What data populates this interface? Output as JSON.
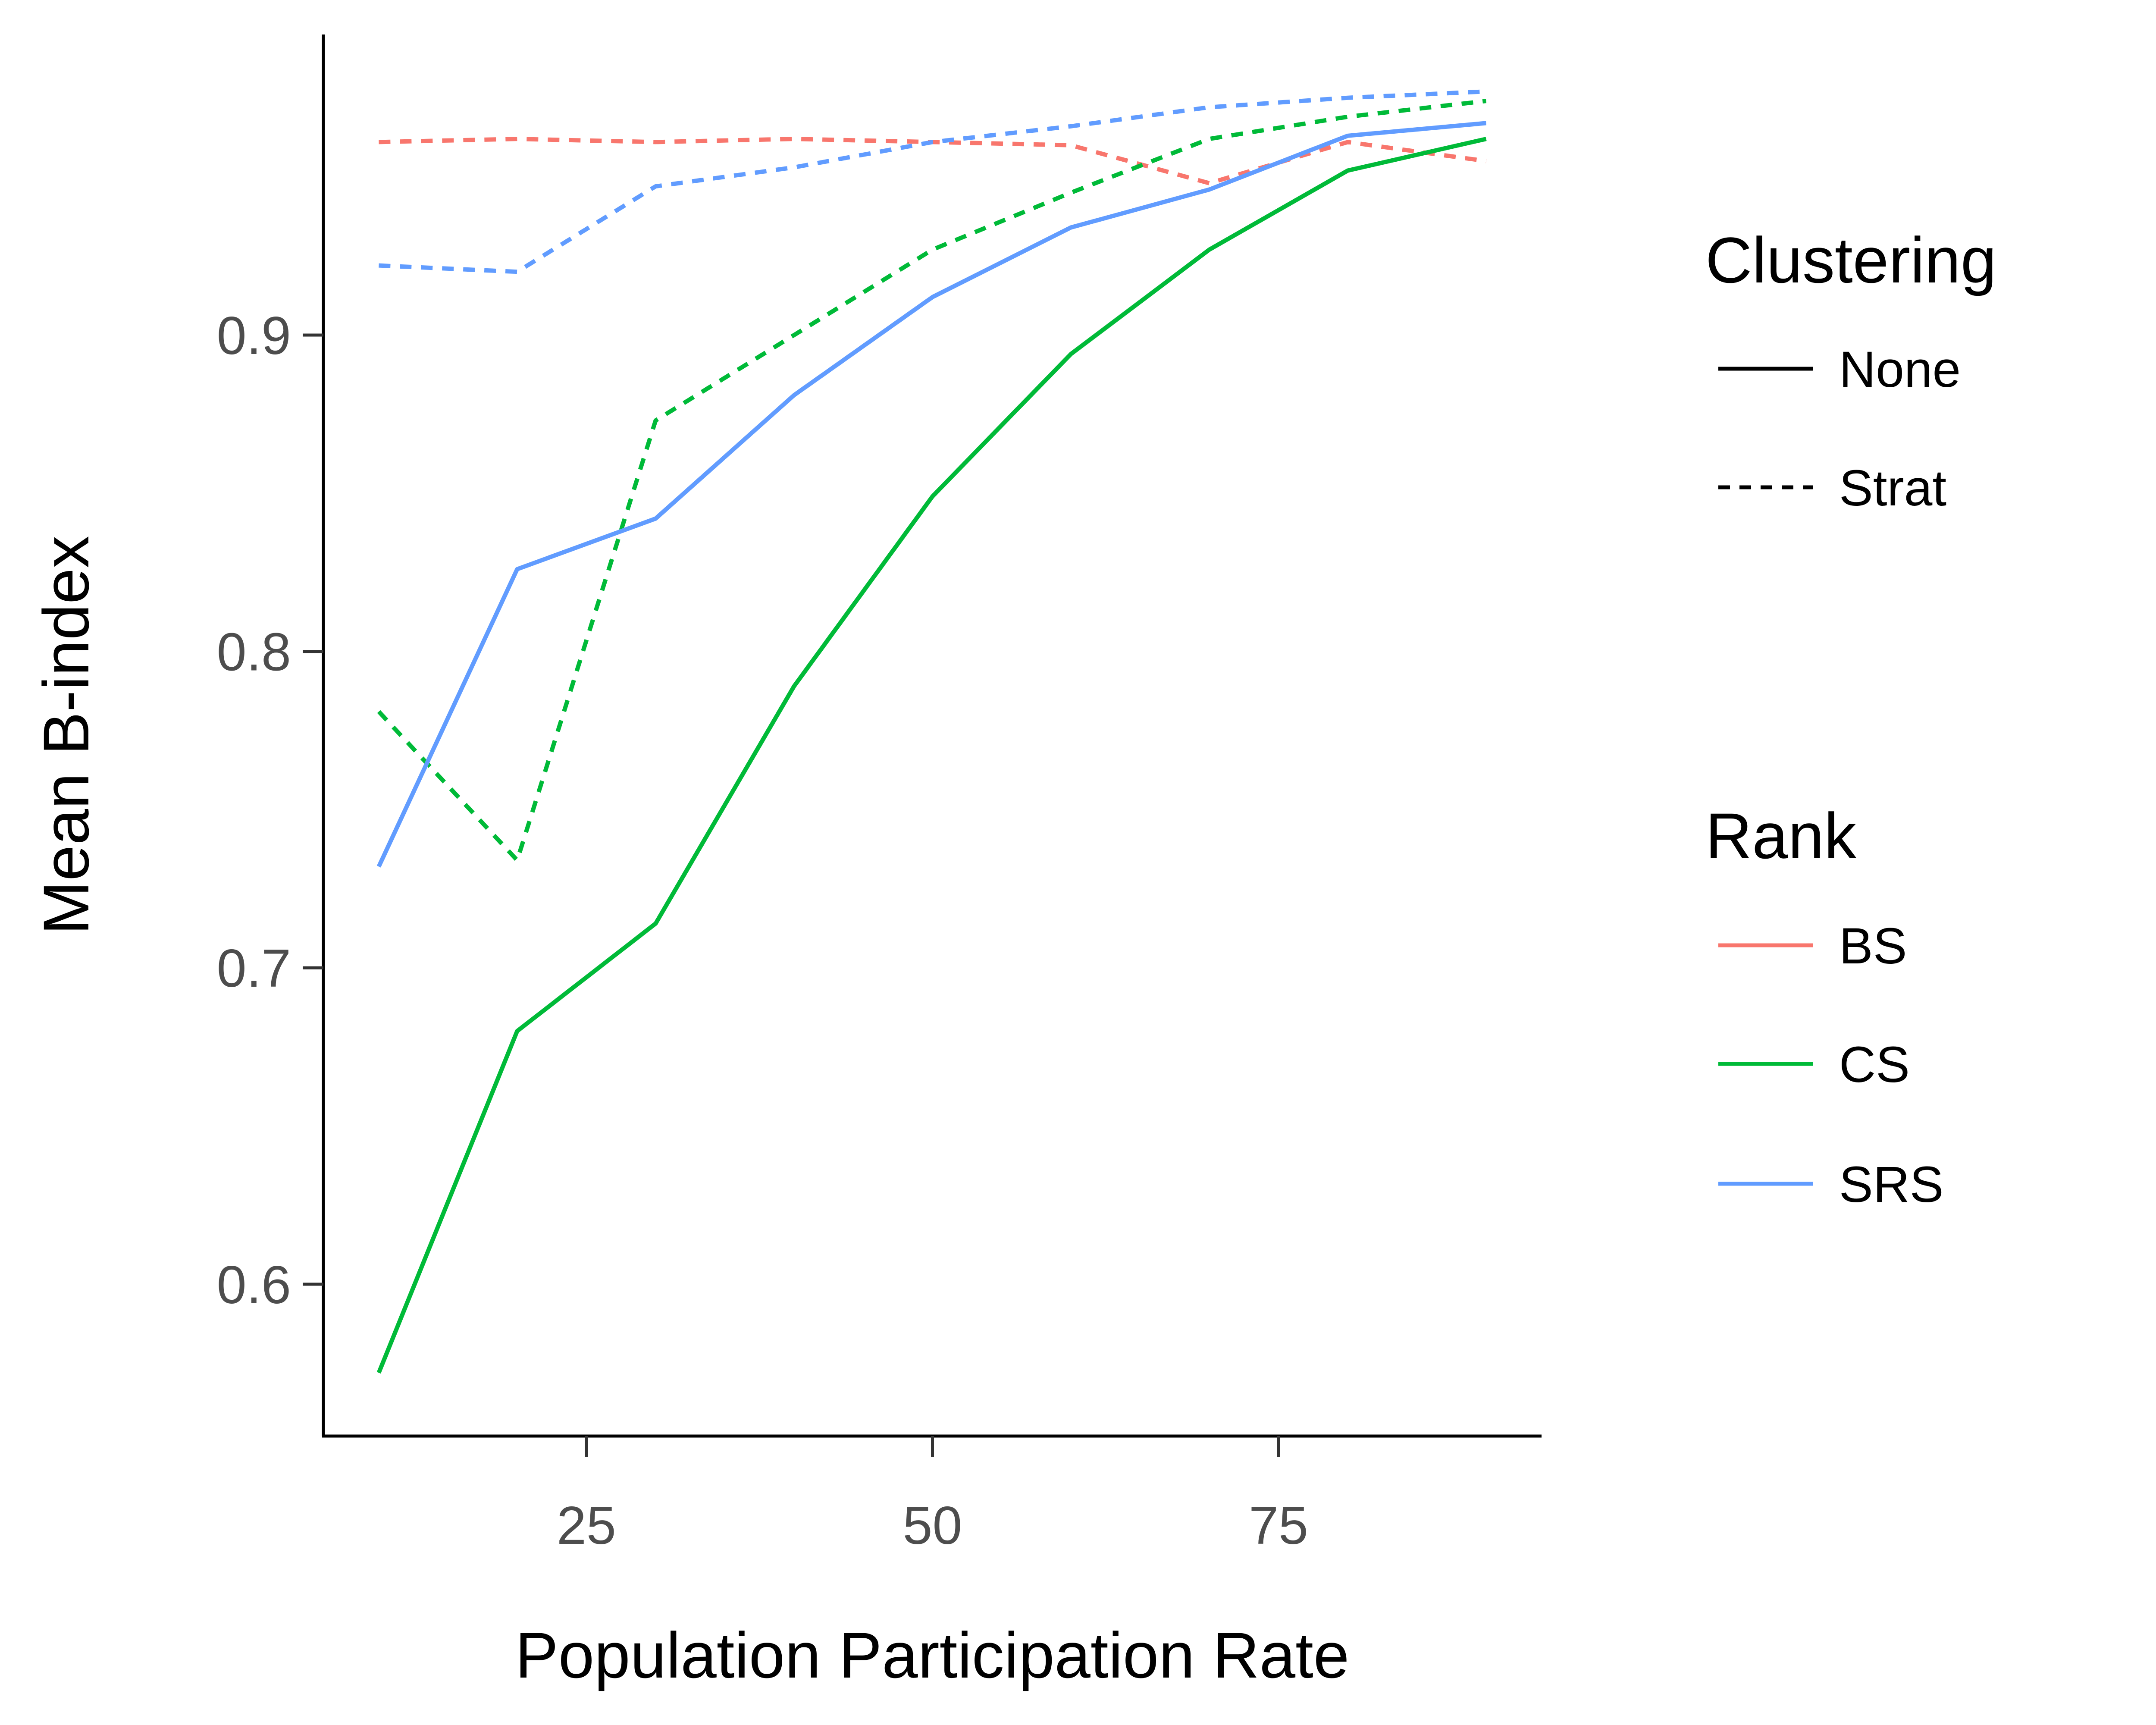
{
  "chart_data": {
    "type": "line",
    "xlabel": "Population Participation Rate",
    "ylabel": "Mean B-index",
    "xlim": [
      6,
      94
    ],
    "ylim": [
      0.552,
      0.995
    ],
    "x_ticks": [
      25,
      50,
      75
    ],
    "y_ticks": [
      0.6,
      0.7,
      0.8,
      0.9
    ],
    "x_tick_labels": [
      "25",
      "50",
      "75"
    ],
    "y_tick_labels": [
      "0.6",
      "0.7",
      "0.8",
      "0.9"
    ],
    "grid": false,
    "legend_placement": "right",
    "legend": {
      "clustering": {
        "title": "Clustering",
        "entries": [
          {
            "label": "None",
            "dash": "solid"
          },
          {
            "label": "Strat",
            "dash": "dotted"
          }
        ]
      },
      "rank": {
        "title": "Rank",
        "entries": [
          {
            "label": "BS",
            "color": "#F8766D"
          },
          {
            "label": "CS",
            "color": "#00BA38"
          },
          {
            "label": "SRS",
            "color": "#619CFF"
          }
        ]
      }
    },
    "x": [
      10,
      20,
      30,
      40,
      50,
      60,
      70,
      80,
      90
    ],
    "series": [
      {
        "rank": "BS",
        "clustering": "Strat",
        "color": "#F8766D",
        "dash": "dotted",
        "values": [
          0.961,
          0.962,
          0.961,
          0.962,
          0.961,
          0.96,
          0.948,
          0.961,
          0.955
        ]
      },
      {
        "rank": "CS",
        "clustering": "None",
        "color": "#00BA38",
        "dash": "solid",
        "values": [
          0.572,
          0.68,
          0.714,
          0.789,
          0.849,
          0.894,
          0.927,
          0.952,
          0.962
        ]
      },
      {
        "rank": "CS",
        "clustering": "Strat",
        "color": "#00BA38",
        "dash": "dotted",
        "values": [
          0.781,
          0.734,
          0.873,
          0.9,
          0.927,
          0.945,
          0.962,
          0.969,
          0.974
        ]
      },
      {
        "rank": "SRS",
        "clustering": "None",
        "color": "#619CFF",
        "dash": "solid",
        "values": [
          0.732,
          0.826,
          0.842,
          0.881,
          0.912,
          0.934,
          0.946,
          0.963,
          0.967
        ]
      },
      {
        "rank": "SRS",
        "clustering": "Strat",
        "color": "#619CFF",
        "dash": "dotted",
        "values": [
          0.922,
          0.92,
          0.947,
          0.953,
          0.961,
          0.966,
          0.972,
          0.975,
          0.977
        ]
      }
    ]
  }
}
